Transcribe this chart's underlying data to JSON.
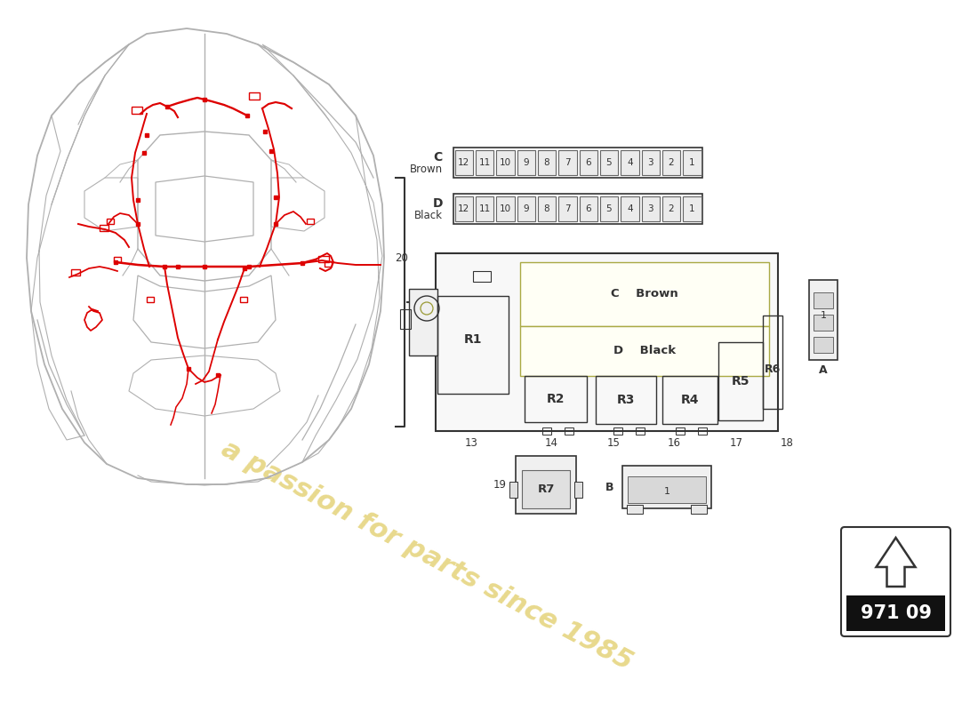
{
  "bg_color": "#ffffff",
  "car_outline_color": "#b0b0b0",
  "wiring_color": "#dd0000",
  "diagram_color": "#333333",
  "fuse_count": 12,
  "relay_labels": [
    "R1",
    "R2",
    "R3",
    "R4",
    "R5",
    "R6",
    "R7"
  ],
  "number_labels": [
    "13",
    "14",
    "15",
    "16",
    "17",
    "18",
    "19",
    "20"
  ],
  "component_A_label": "A",
  "component_B_label": "B",
  "page_number": "971 09",
  "watermark_text": "a passion for parts since 1985"
}
